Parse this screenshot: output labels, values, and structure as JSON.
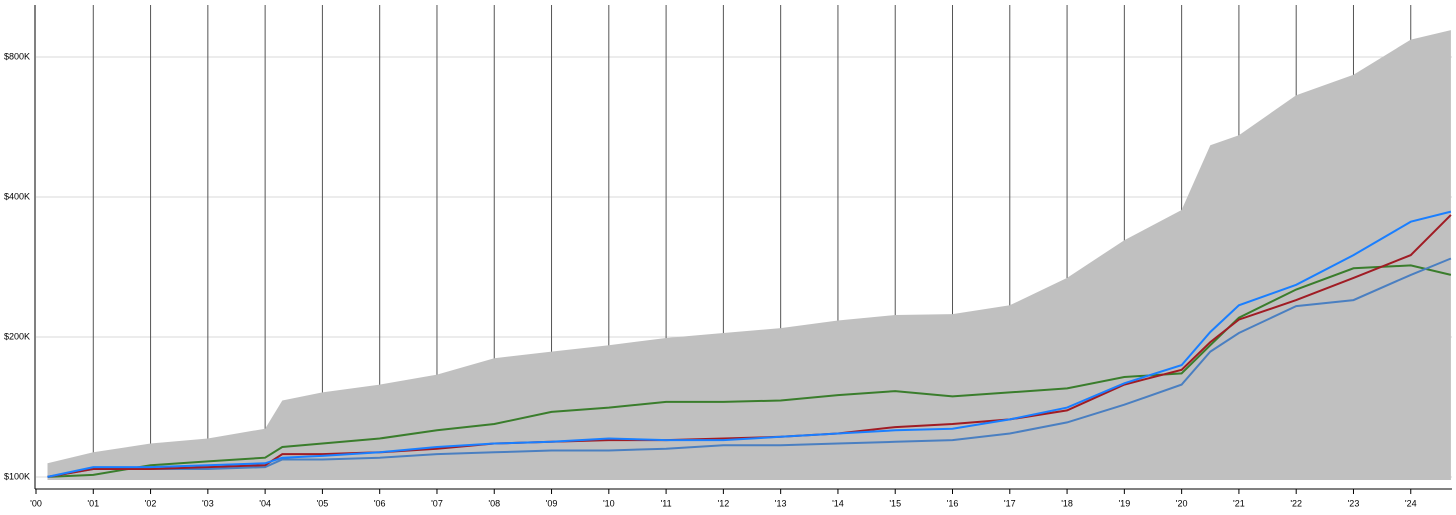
{
  "chart_data": {
    "type": "line",
    "log_y": true,
    "grid": true,
    "x": [
      2000.2,
      2001,
      2002,
      2003,
      2004,
      2004.3,
      2005,
      2006,
      2007,
      2008,
      2009,
      2010,
      2011,
      2012,
      2013,
      2014,
      2015,
      2016,
      2017,
      2018,
      2019,
      2020,
      2020.5,
      2021,
      2022,
      2023,
      2024,
      2024.7
    ],
    "xlim": [
      2000,
      2024.72
    ],
    "xticks": [
      {
        "value": 2000,
        "label": "'00"
      },
      {
        "value": 2001,
        "label": "'01"
      },
      {
        "value": 2002,
        "label": "'02"
      },
      {
        "value": 2003,
        "label": "'03"
      },
      {
        "value": 2004,
        "label": "'04"
      },
      {
        "value": 2005,
        "label": "'05"
      },
      {
        "value": 2006,
        "label": "'06"
      },
      {
        "value": 2007,
        "label": "'07"
      },
      {
        "value": 2008,
        "label": "'08"
      },
      {
        "value": 2009,
        "label": "'09"
      },
      {
        "value": 2010,
        "label": "'10"
      },
      {
        "value": 2011,
        "label": "'11"
      },
      {
        "value": 2012,
        "label": "'12"
      },
      {
        "value": 2013,
        "label": "'13"
      },
      {
        "value": 2014,
        "label": "'14"
      },
      {
        "value": 2015,
        "label": "'15"
      },
      {
        "value": 2016,
        "label": "'16"
      },
      {
        "value": 2017,
        "label": "'17"
      },
      {
        "value": 2018,
        "label": "'18"
      },
      {
        "value": 2019,
        "label": "'19"
      },
      {
        "value": 2020,
        "label": "'20"
      },
      {
        "value": 2021,
        "label": "'21"
      },
      {
        "value": 2022,
        "label": "'22"
      },
      {
        "value": 2023,
        "label": "'23"
      },
      {
        "value": 2024,
        "label": "'24"
      }
    ],
    "ylim": [
      98500,
      1035000
    ],
    "yticks": [
      {
        "value": 100000,
        "label": "$100K"
      },
      {
        "value": 200000,
        "label": "$200K"
      },
      {
        "value": 400000,
        "label": "$400K"
      },
      {
        "value": 800000,
        "label": "$800K"
      }
    ],
    "series": [
      {
        "color": "#c0c0c0",
        "fill": true,
        "values": [
          107000,
          113000,
          118000,
          121000,
          127000,
          146000,
          152000,
          158000,
          166000,
          180000,
          186000,
          192000,
          199000,
          204000,
          209000,
          217000,
          223000,
          224000,
          234000,
          268000,
          323000,
          375000,
          517000,
          543000,
          662000,
          733000,
          872000,
          914000
        ]
      },
      {
        "color": "#3a7d2c",
        "values": [
          100000,
          101000,
          106000,
          108000,
          110000,
          116000,
          118000,
          121000,
          126000,
          130000,
          138000,
          141000,
          145000,
          145000,
          146000,
          150000,
          153000,
          149000,
          152000,
          155000,
          164000,
          167000,
          192000,
          220000,
          253000,
          281000,
          285000,
          272000
        ]
      },
      {
        "color": "#4a7fc1",
        "values": [
          100000,
          104000,
          104000,
          104000,
          105000,
          109000,
          109000,
          110000,
          112000,
          113000,
          114000,
          114000,
          115000,
          117000,
          117000,
          118000,
          119000,
          120000,
          124000,
          131000,
          143000,
          158000,
          186000,
          204000,
          233000,
          240000,
          272000,
          295000
        ]
      },
      {
        "color": "#a01c24",
        "values": [
          100000,
          104000,
          104000,
          105000,
          106000,
          112000,
          112000,
          113000,
          115000,
          118000,
          119000,
          120000,
          120000,
          121000,
          122000,
          124000,
          128000,
          130000,
          133000,
          139000,
          158000,
          170000,
          195000,
          218000,
          240000,
          268000,
          300000,
          366000
        ]
      },
      {
        "color": "#1a7fff",
        "values": [
          100000,
          105000,
          105000,
          106000,
          107000,
          110000,
          111000,
          113000,
          116000,
          118000,
          119000,
          121000,
          120000,
          120000,
          122000,
          124000,
          126000,
          127000,
          133000,
          141000,
          159000,
          174000,
          205000,
          234000,
          259000,
          300000,
          354000,
          372000
        ]
      }
    ]
  }
}
